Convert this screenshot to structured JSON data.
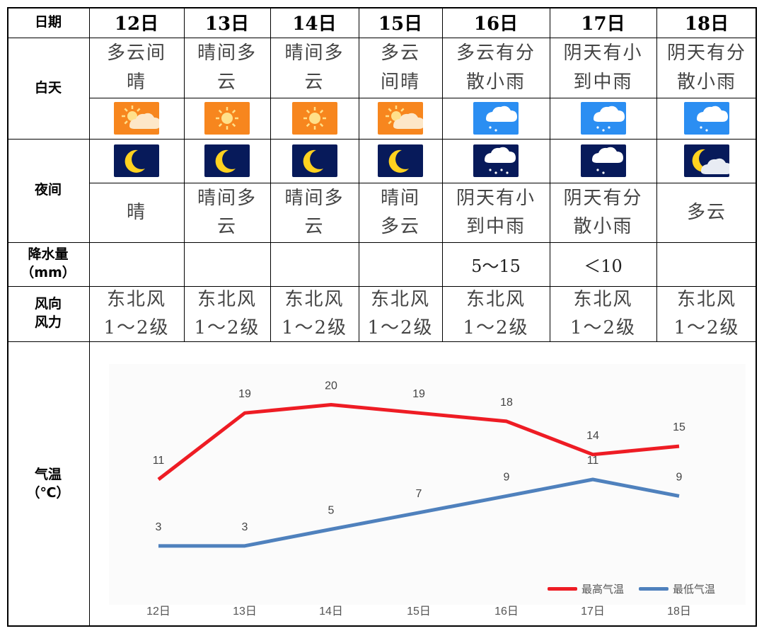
{
  "row_labels": {
    "date": "日期",
    "day": "白天",
    "night": "夜间",
    "precip": [
      "降水量",
      "（mm）"
    ],
    "wind": [
      "风向",
      "风力"
    ],
    "temp": [
      "气温",
      "（℃）"
    ]
  },
  "days": [
    {
      "date": "12日",
      "day_text": [
        "多云间",
        "晴"
      ],
      "day_icon": "partly-sunny-icon",
      "night_icon": "moon-icon",
      "night_text": [
        "晴"
      ],
      "precip": "",
      "wind": [
        "东北风",
        "1～2级"
      ]
    },
    {
      "date": "13日",
      "day_text": [
        "晴间多",
        "云"
      ],
      "day_icon": "sun-icon",
      "night_icon": "moon-icon",
      "night_text": [
        "晴间多",
        "云"
      ],
      "precip": "",
      "wind": [
        "东北风",
        "1～2级"
      ]
    },
    {
      "date": "14日",
      "day_text": [
        "晴间多",
        "云"
      ],
      "day_icon": "sun-icon",
      "night_icon": "moon-icon",
      "night_text": [
        "晴间多",
        "云"
      ],
      "precip": "",
      "wind": [
        "东北风",
        "1～2级"
      ]
    },
    {
      "date": "15日",
      "day_text": [
        "多云",
        "间晴"
      ],
      "day_icon": "partly-sunny-icon",
      "night_icon": "moon-icon",
      "night_text": [
        "晴间",
        "多云"
      ],
      "precip": "",
      "wind": [
        "东北风",
        "1～2级"
      ]
    },
    {
      "date": "16日",
      "day_text": [
        "多云有分",
        "散小雨"
      ],
      "day_icon": "light-rain-icon",
      "night_icon": "night-rain-icon",
      "night_text": [
        "阴天有小",
        "到中雨"
      ],
      "precip": "5～15",
      "wind": [
        "东北风",
        "1～2级"
      ]
    },
    {
      "date": "17日",
      "day_text": [
        "阴天有小",
        "到中雨"
      ],
      "day_icon": "moderate-rain-icon",
      "night_icon": "night-light-rain-icon",
      "night_text": [
        "阴天有分",
        "散小雨"
      ],
      "precip": "＜10",
      "wind": [
        "东北风",
        "1～2级"
      ]
    },
    {
      "date": "18日",
      "day_text": [
        "阴天有分",
        "散小雨"
      ],
      "day_icon": "light-rain-icon",
      "night_icon": "cloudy-moon-icon",
      "night_text": [
        "多云"
      ],
      "precip": "",
      "wind": [
        "东北风",
        "1～2级"
      ]
    }
  ],
  "colors": {
    "high": "#ee1c24",
    "low": "#4f81bd",
    "sun_bg": "#f7861e",
    "rain_bg": "#2b8ef2",
    "night_bg": "#071a5a"
  },
  "chart_data": {
    "type": "line",
    "categories": [
      "12日",
      "13日",
      "14日",
      "15日",
      "16日",
      "17日",
      "18日"
    ],
    "series": [
      {
        "name": "最高气温",
        "values": [
          11,
          19,
          20,
          19,
          18,
          14,
          15
        ],
        "color": "#ee1c24"
      },
      {
        "name": "最低气温",
        "values": [
          3,
          3,
          5,
          7,
          9,
          11,
          9
        ],
        "color": "#4f81bd"
      }
    ],
    "ylim": [
      0,
      22
    ],
    "grid": false,
    "legend": "bottom-right"
  }
}
